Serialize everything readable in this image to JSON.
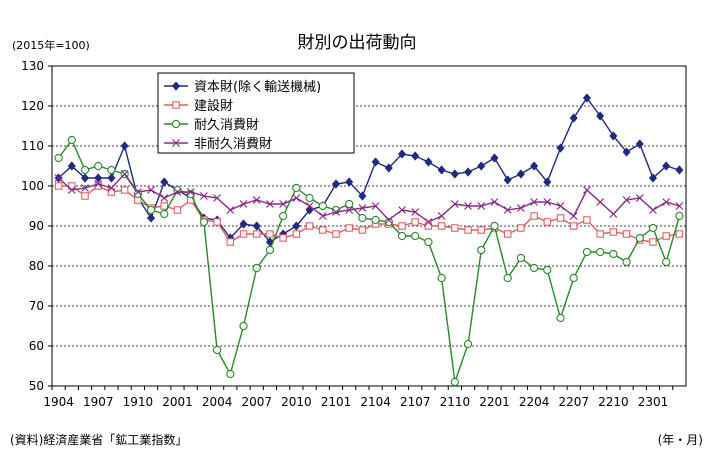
{
  "chart_data": {
    "type": "line",
    "title": "財別の出荷動向",
    "unit_label": "(2015年=100)",
    "source_note": "(資料)経済産業省「鉱工業指数」",
    "axis_note": "(年・月)",
    "ylim": [
      50,
      130
    ],
    "y_ticks": [
      "50",
      "60",
      "70",
      "80",
      "90",
      "100",
      "110",
      "120",
      "130"
    ],
    "x_ticks": [
      "1904",
      "1907",
      "1910",
      "2001",
      "2004",
      "2007",
      "2010",
      "2101",
      "2104",
      "2107",
      "2110",
      "2201",
      "2204",
      "2207",
      "2210",
      "2301"
    ],
    "grid": "horizontal dashed",
    "legend_position": "top-center",
    "x": [
      "1904",
      "1905",
      "1906",
      "1907",
      "1908",
      "1909",
      "1910",
      "1911",
      "1912",
      "2001",
      "2002",
      "2003",
      "2004",
      "2005",
      "2006",
      "2007",
      "2008",
      "2009",
      "2010",
      "2011",
      "2012",
      "2101",
      "2102",
      "2103",
      "2104",
      "2105",
      "2106",
      "2107",
      "2108",
      "2109",
      "2110",
      "2111",
      "2112",
      "2201",
      "2202",
      "2203",
      "2204",
      "2205",
      "2206",
      "2207",
      "2208",
      "2209",
      "2210",
      "2211",
      "2212",
      "2301",
      "2302",
      "2303"
    ],
    "series": [
      {
        "name": "資本財(除く輸送機械)",
        "color": "#1f2a80",
        "marker": "diamond",
        "values": [
          102,
          105,
          102,
          102,
          102,
          110,
          97,
          92,
          101,
          99,
          97,
          92,
          91.5,
          87,
          90.5,
          90,
          86,
          88,
          90,
          94,
          95,
          100.5,
          101,
          97.5,
          106,
          104.5,
          108,
          107.5,
          106,
          104,
          103,
          103.5,
          105,
          107,
          101.5,
          103,
          105,
          101,
          109.5,
          117,
          122,
          117.5,
          112.5,
          108.5,
          110.5,
          102,
          105,
          104
        ]
      },
      {
        "name": "建設財",
        "color": "#e06060",
        "marker": "square",
        "values": [
          100,
          100,
          97.5,
          100,
          98.5,
          99,
          96.5,
          94.5,
          95,
          94,
          96.5,
          91.5,
          91,
          86,
          88,
          88,
          88,
          87,
          88,
          90,
          89,
          88,
          89.5,
          89,
          90.5,
          90.5,
          90,
          91,
          90,
          90,
          89.5,
          89,
          89,
          89.5,
          88,
          89.5,
          92.5,
          91,
          92,
          90,
          91.5,
          88,
          88.5,
          88,
          86.5,
          86,
          87.5,
          88
        ]
      },
      {
        "name": "耐久消費財",
        "color": "#2a8a2a",
        "marker": "circle",
        "values": [
          107,
          111.5,
          104,
          105,
          104,
          103,
          98,
          94,
          93,
          99,
          98,
          91,
          59,
          53,
          65,
          79.5,
          84,
          92.5,
          99.5,
          97,
          95,
          94,
          95.5,
          92,
          91.5,
          91,
          87.5,
          87.5,
          86,
          77,
          51,
          60.5,
          84,
          90,
          77,
          82,
          79.5,
          79,
          67,
          77,
          83.5,
          83.5,
          83,
          81,
          87,
          89.5,
          81,
          92.5
        ]
      },
      {
        "name": "非耐久消費財",
        "color": "#8a2a8a",
        "marker": "cross",
        "values": [
          102,
          99,
          99.5,
          100.5,
          99.5,
          103,
          98.5,
          99,
          97,
          98.5,
          98.5,
          97.5,
          97,
          94,
          95.5,
          96.5,
          95.5,
          95.5,
          97,
          95,
          92.5,
          93.5,
          94,
          94.5,
          95,
          91.5,
          94,
          93.5,
          91,
          92.5,
          95.5,
          95,
          95,
          96,
          94,
          94.5,
          96,
          96,
          95,
          92.5,
          99,
          96,
          93,
          96.5,
          97,
          94,
          96,
          95
        ]
      }
    ]
  }
}
